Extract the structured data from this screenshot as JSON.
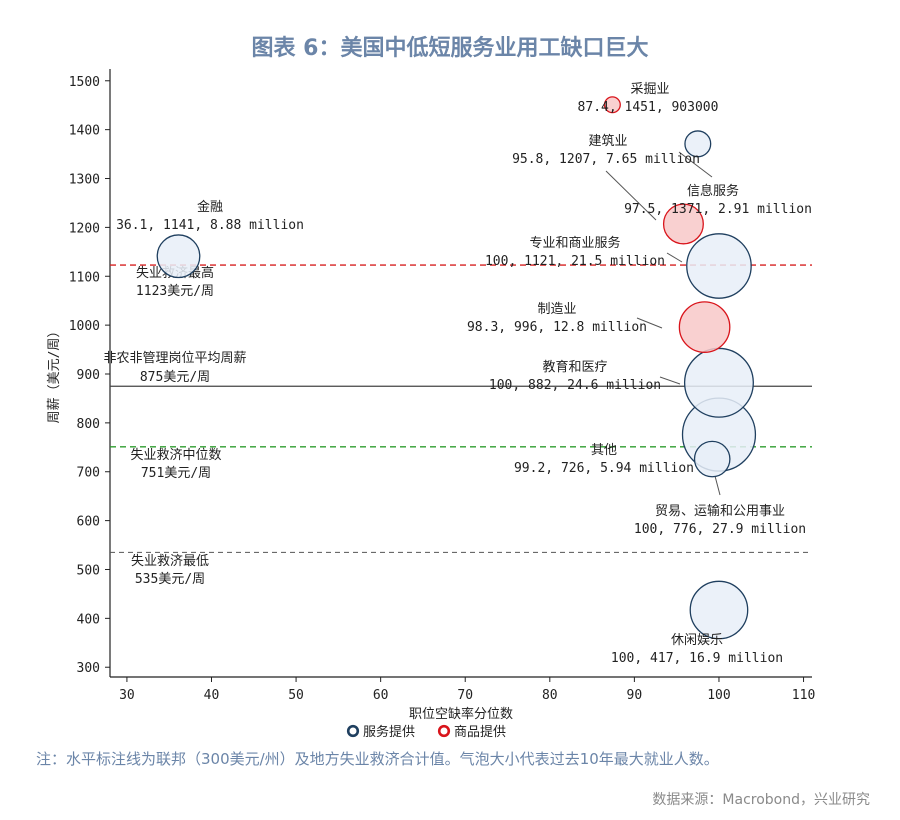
{
  "title": "图表 6：美国中低短服务业用工缺口巨大",
  "note": "注：水平标注线为联邦（300美元/州）及地方失业救济合计值。气泡大小代表过去10年最大就业人数。",
  "source": "数据来源：Macrobond，兴业研究",
  "colors": {
    "service_stroke": "#1f3f5f",
    "service_fill": "#e7eef8",
    "goods_stroke": "#d9141b",
    "goods_fill": "#f8c8c8",
    "red_line": "#d62020",
    "green_line": "#2e9d2e",
    "gray_line": "#555555",
    "dark_line": "#444444"
  },
  "chart_data": {
    "type": "scatter",
    "xlabel": "职位空缺率分位数",
    "ylabel": "周薪（美元/周）",
    "xlim": [
      28,
      111
    ],
    "ylim": [
      280,
      1520
    ],
    "xticks": [
      30,
      40,
      50,
      60,
      70,
      80,
      90,
      100,
      110
    ],
    "yticks": [
      300,
      400,
      500,
      600,
      700,
      800,
      900,
      1000,
      1100,
      1200,
      1300,
      1400,
      1500
    ],
    "legend": [
      {
        "label": "服务提供",
        "category": "service"
      },
      {
        "label": "商品提供",
        "category": "goods"
      }
    ],
    "points": [
      {
        "name": "采掘业",
        "x": 87.4,
        "y": 1451,
        "size_millions": 0.903,
        "category": "goods",
        "value_label": "87.4, 1451, 903000"
      },
      {
        "name": "信息服务",
        "x": 97.5,
        "y": 1371,
        "size_millions": 2.91,
        "category": "service",
        "value_label": "97.5, 1371, 2.91 million"
      },
      {
        "name": "建筑业",
        "x": 95.8,
        "y": 1207,
        "size_millions": 7.65,
        "category": "goods",
        "value_label": "95.8, 1207, 7.65 million"
      },
      {
        "name": "金融",
        "x": 36.1,
        "y": 1141,
        "size_millions": 8.88,
        "category": "service",
        "value_label": "36.1, 1141, 8.88 million"
      },
      {
        "name": "专业和商业服务",
        "x": 100,
        "y": 1121,
        "size_millions": 21.5,
        "category": "service",
        "value_label": "100, 1121, 21.5 million"
      },
      {
        "name": "制造业",
        "x": 98.3,
        "y": 996,
        "size_millions": 12.8,
        "category": "goods",
        "value_label": "98.3, 996, 12.8 million"
      },
      {
        "name": "教育和医疗",
        "x": 100,
        "y": 882,
        "size_millions": 24.6,
        "category": "service",
        "value_label": "100, 882, 24.6 million"
      },
      {
        "name": "贸易、运输和公用事业",
        "x": 100,
        "y": 776,
        "size_millions": 27.9,
        "category": "service",
        "value_label": "100, 776, 27.9 million"
      },
      {
        "name": "其他",
        "x": 99.2,
        "y": 726,
        "size_millions": 5.94,
        "category": "service",
        "value_label": "99.2, 726, 5.94 million"
      },
      {
        "name": "休闲娱乐",
        "x": 100,
        "y": 417,
        "size_millions": 16.9,
        "category": "service",
        "value_label": "100, 417, 16.9 million"
      }
    ],
    "reference_lines": [
      {
        "name": "失业救济最高",
        "value": 1123,
        "value_label": "1123美元/周",
        "style": "red"
      },
      {
        "name": "非农非管理岗位平均周薪",
        "value": 875,
        "value_label": "875美元/周",
        "style": "dark"
      },
      {
        "name": "失业救济中位数",
        "value": 751,
        "value_label": "751美元/周",
        "style": "green"
      },
      {
        "name": "失业救济最低",
        "value": 535,
        "value_label": "535美元/周",
        "style": "gray"
      }
    ]
  }
}
